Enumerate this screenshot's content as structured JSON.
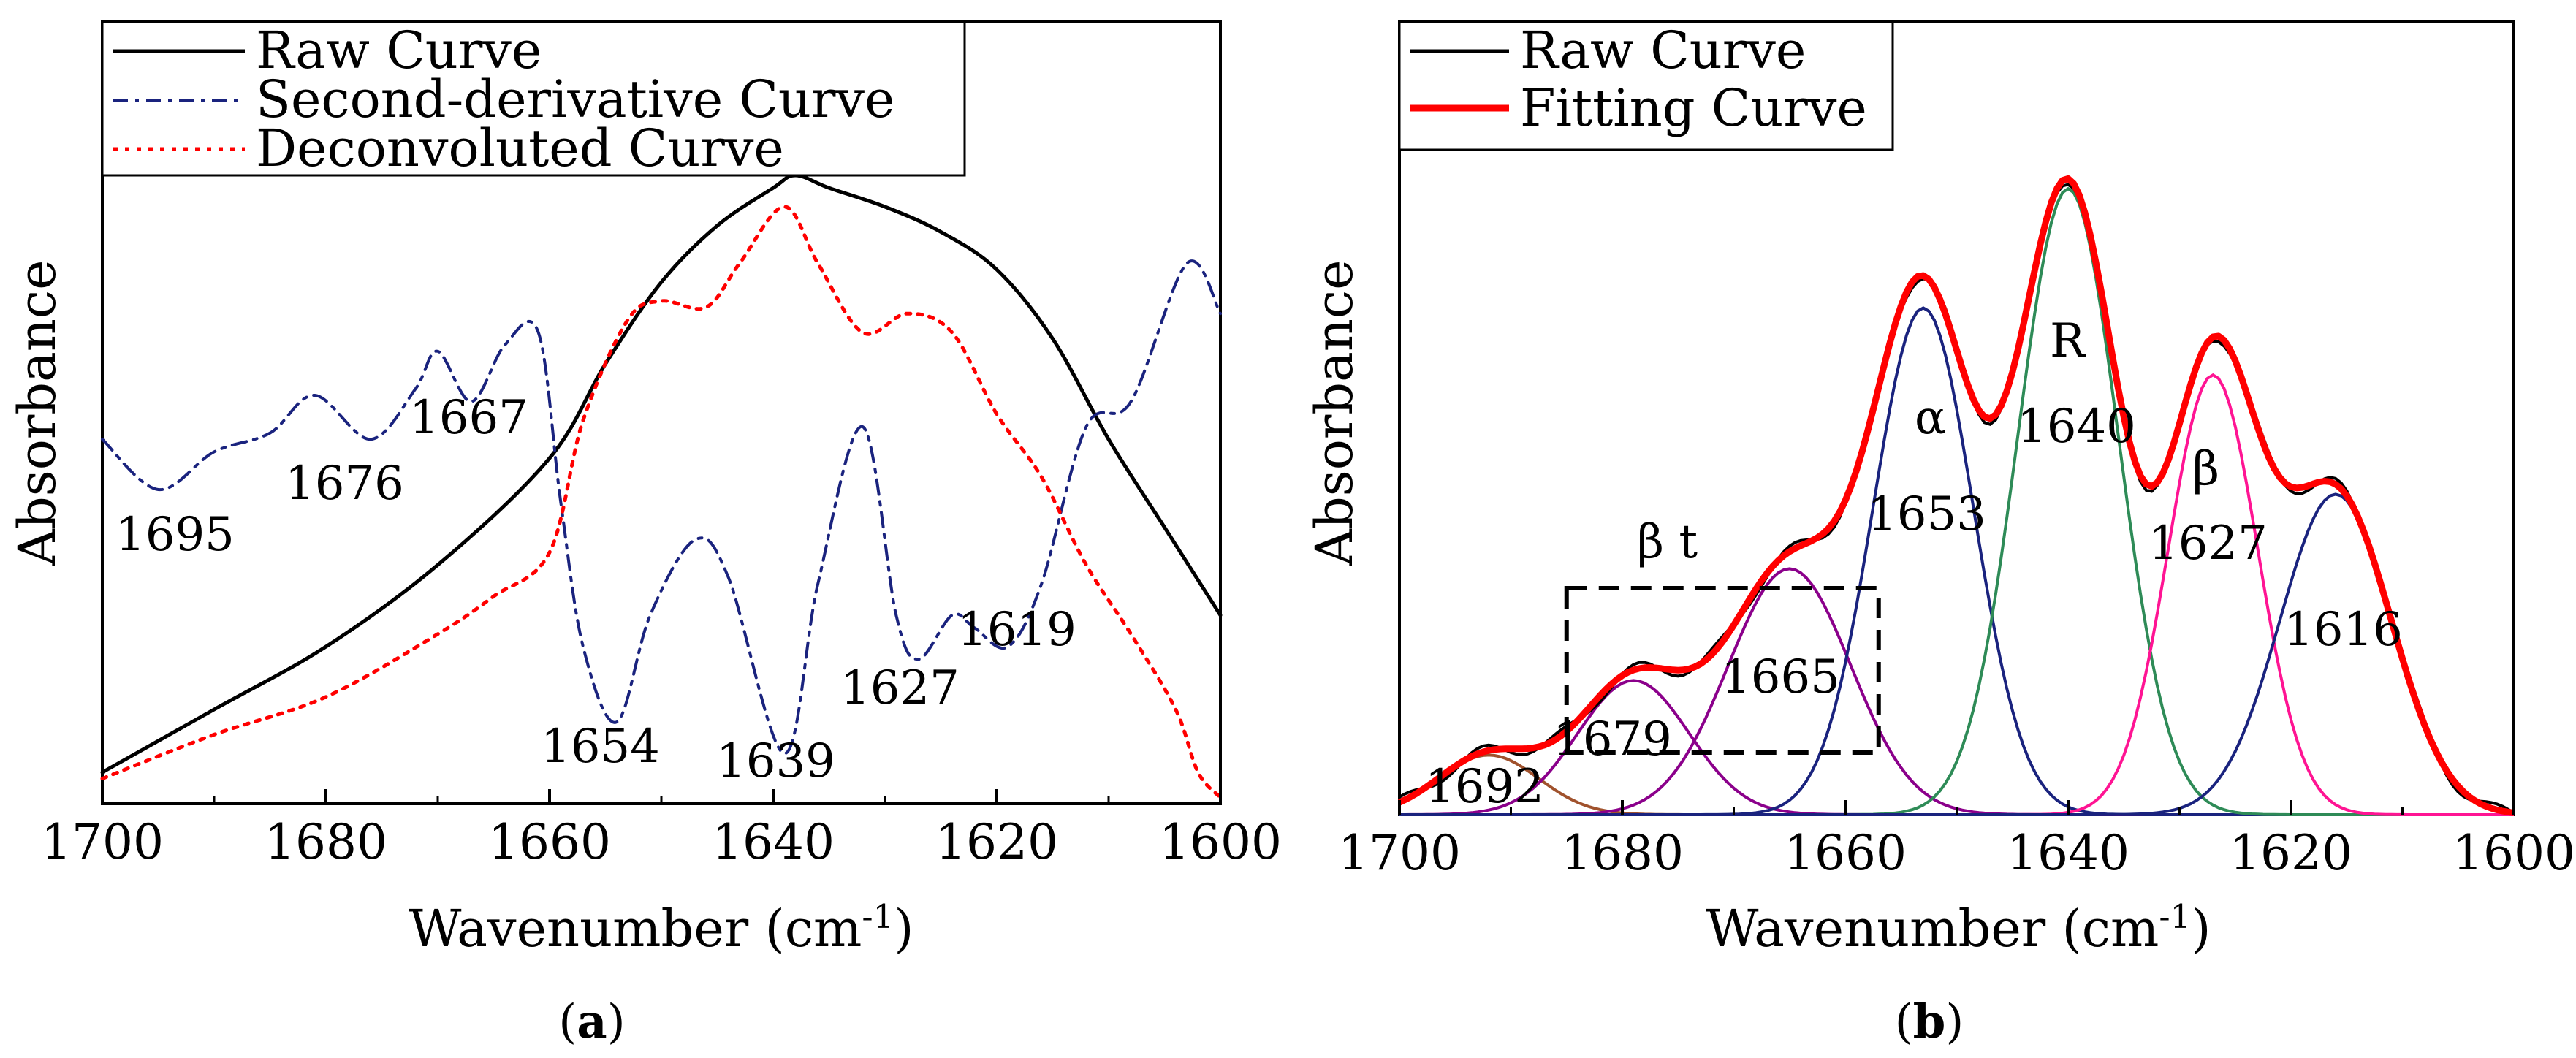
{
  "figure": {
    "panels": [
      "a",
      "b"
    ]
  },
  "chart_data": [
    {
      "panel_label": "a",
      "type": "line",
      "title": "",
      "xlabel": "Wavenumber (cm",
      "xlabel_sup": "-1",
      "xlabel_close": ")",
      "ylabel": "Absorbance",
      "xlim": [
        1700,
        1600
      ],
      "ylim": [
        0,
        1
      ],
      "x_ticks": [
        1700,
        1680,
        1660,
        1640,
        1620,
        1600
      ],
      "legend": [
        {
          "label": "Raw Curve",
          "color": "#000000",
          "style": "solid"
        },
        {
          "label": "Second-derivative Curve",
          "color": "#1a237e",
          "style": "dashdot"
        },
        {
          "label": "Deconvoluted Curve",
          "color": "#ff0000",
          "style": "dotted"
        }
      ],
      "series": [
        {
          "name": "Raw Curve",
          "color": "#000000",
          "x": [
            1700,
            1690,
            1680,
            1670,
            1660,
            1655,
            1650,
            1645,
            1640,
            1638,
            1635,
            1630,
            1625,
            1620,
            1615,
            1610,
            1605,
            1600
          ],
          "values": [
            0.05,
            0.15,
            0.25,
            0.38,
            0.55,
            0.7,
            0.83,
            0.92,
            0.98,
            1.0,
            0.98,
            0.95,
            0.91,
            0.85,
            0.74,
            0.58,
            0.44,
            0.3
          ]
        },
        {
          "name": "Second-derivative Curve",
          "color": "#1a237e",
          "x": [
            1700,
            1695,
            1690,
            1685,
            1681,
            1676,
            1672,
            1670,
            1667,
            1664,
            1661,
            1659,
            1657,
            1654,
            1651,
            1647,
            1644,
            1639,
            1636,
            1632,
            1629,
            1627,
            1624,
            1622,
            1619,
            1616,
            1612,
            1608,
            1603,
            1600
          ],
          "values": [
            0.58,
            0.5,
            0.56,
            0.59,
            0.65,
            0.58,
            0.66,
            0.72,
            0.64,
            0.73,
            0.75,
            0.48,
            0.25,
            0.13,
            0.3,
            0.42,
            0.36,
            0.08,
            0.35,
            0.6,
            0.3,
            0.23,
            0.3,
            0.28,
            0.25,
            0.35,
            0.6,
            0.64,
            0.86,
            0.78
          ]
        },
        {
          "name": "Deconvoluted Curve",
          "color": "#ff0000",
          "x": [
            1700,
            1690,
            1680,
            1670,
            1665,
            1660,
            1657,
            1653,
            1650,
            1646,
            1643,
            1639,
            1636,
            1632,
            1628,
            1624,
            1620,
            1616,
            1612,
            1608,
            1604,
            1602,
            1600
          ],
          "values": [
            0.04,
            0.11,
            0.17,
            0.27,
            0.33,
            0.4,
            0.61,
            0.77,
            0.8,
            0.79,
            0.86,
            0.95,
            0.86,
            0.75,
            0.78,
            0.75,
            0.62,
            0.52,
            0.38,
            0.27,
            0.15,
            0.05,
            0.01
          ]
        }
      ],
      "annotations": [
        "1695",
        "1676",
        "1667",
        "1654",
        "1639",
        "1627",
        "1619"
      ]
    },
    {
      "panel_label": "b",
      "type": "line",
      "title": "",
      "xlabel": "Wavenumber (cm",
      "xlabel_sup": "-1",
      "xlabel_close": ")",
      "ylabel": "Absorbance",
      "xlim": [
        1700,
        1600
      ],
      "ylim": [
        0,
        1
      ],
      "x_ticks": [
        1700,
        1680,
        1660,
        1640,
        1620,
        1600
      ],
      "legend": [
        {
          "label": "Raw Curve",
          "color": "#000000",
          "style": "solid"
        },
        {
          "label": "Fitting Curve",
          "color": "#ff0000",
          "style": "solid"
        }
      ],
      "components": [
        {
          "center": 1692,
          "amplitude": 0.08,
          "width": 4.5,
          "color": "#a0522d",
          "label": "1692"
        },
        {
          "center": 1679,
          "amplitude": 0.18,
          "width": 5.0,
          "color": "#8b008b",
          "label": "1679"
        },
        {
          "center": 1665,
          "amplitude": 0.33,
          "width": 5.5,
          "color": "#8b008b",
          "label": "1665"
        },
        {
          "center": 1653,
          "amplitude": 0.68,
          "width": 4.5,
          "color": "#1a237e",
          "label": "1653"
        },
        {
          "center": 1640,
          "amplitude": 0.84,
          "width": 4.5,
          "color": "#2e8b57",
          "label": "1640"
        },
        {
          "center": 1627,
          "amplitude": 0.59,
          "width": 4.0,
          "color": "#ff1493",
          "label": "1627"
        },
        {
          "center": 1616,
          "amplitude": 0.43,
          "width": 5.0,
          "color": "#1a237e",
          "label": "1616"
        }
      ],
      "structure_labels": {
        "beta_turn": "β t",
        "alpha": "α",
        "random": "R",
        "beta_sheet": "β"
      },
      "highlight_box": {
        "x_from": 1685,
        "x_to": 1657
      }
    }
  ]
}
